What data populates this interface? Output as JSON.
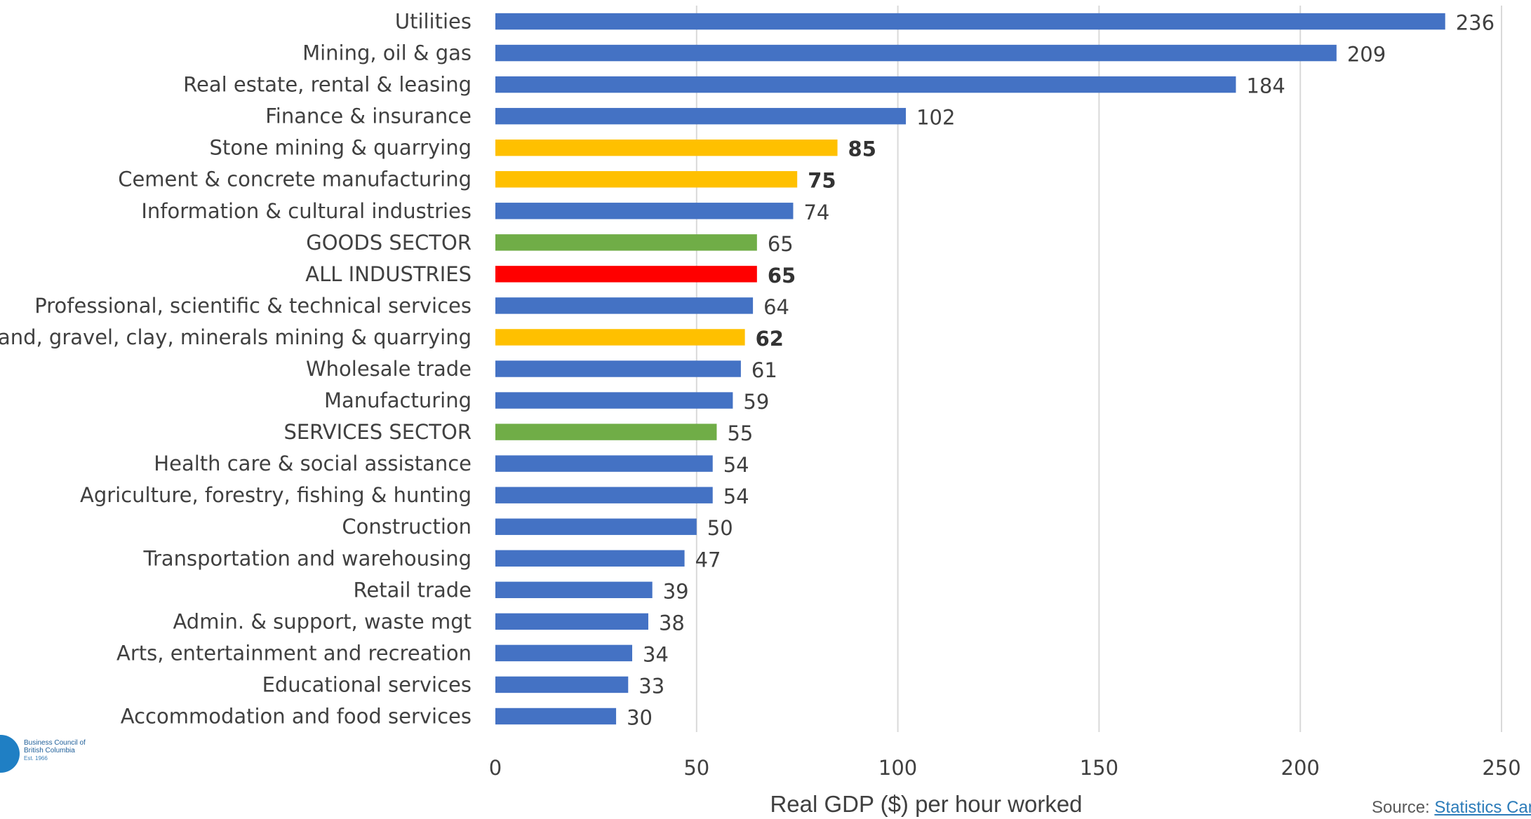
{
  "chart_data": {
    "type": "bar",
    "orientation": "horizontal",
    "categories": [
      "Utilities",
      "Mining, oil & gas",
      "Real estate, rental & leasing",
      "Finance & insurance",
      "Stone mining & quarrying",
      "Cement & concrete manufacturing",
      "Information & cultural industries",
      "GOODS SECTOR",
      "ALL INDUSTRIES",
      "Professional, scientific & technical services",
      "Sand, gravel, clay, minerals mining & quarrying",
      "Wholesale trade",
      "Manufacturing",
      "SERVICES SECTOR",
      "Health care & social assistance",
      "Agriculture, forestry, fishing & hunting",
      "Construction",
      "Transportation and warehousing",
      "Retail trade",
      "Admin. & support, waste mgt",
      "Arts, entertainment and recreation",
      "Educational services",
      "Accommodation and food services"
    ],
    "values": [
      236,
      209,
      184,
      102,
      85,
      75,
      74,
      65,
      65,
      64,
      62,
      61,
      59,
      55,
      54,
      54,
      50,
      47,
      39,
      38,
      34,
      33,
      30
    ],
    "bar_colors": [
      "#4472c4",
      "#4472c4",
      "#4472c4",
      "#4472c4",
      "#ffc000",
      "#ffc000",
      "#4472c4",
      "#70ad47",
      "#ff0000",
      "#4472c4",
      "#ffc000",
      "#4472c4",
      "#4472c4",
      "#70ad47",
      "#4472c4",
      "#4472c4",
      "#4472c4",
      "#4472c4",
      "#4472c4",
      "#4472c4",
      "#4472c4",
      "#4472c4",
      "#4472c4"
    ],
    "bold_value_labels": [
      false,
      false,
      false,
      false,
      true,
      true,
      false,
      false,
      true,
      false,
      true,
      false,
      false,
      false,
      false,
      false,
      false,
      false,
      false,
      false,
      false,
      false,
      false
    ],
    "xlabel": "Real GDP ($) per hour worked",
    "xlim": [
      0,
      250
    ],
    "xticks": [
      0,
      50,
      100,
      150,
      200,
      250
    ],
    "grid": "vertical",
    "legend": "none"
  },
  "source": {
    "prefix": "Source: ",
    "link_text": "Statistics Canada"
  },
  "logo": {
    "line1": "Business Council of",
    "line2": "British Columbia",
    "line3": "Est. 1966"
  }
}
